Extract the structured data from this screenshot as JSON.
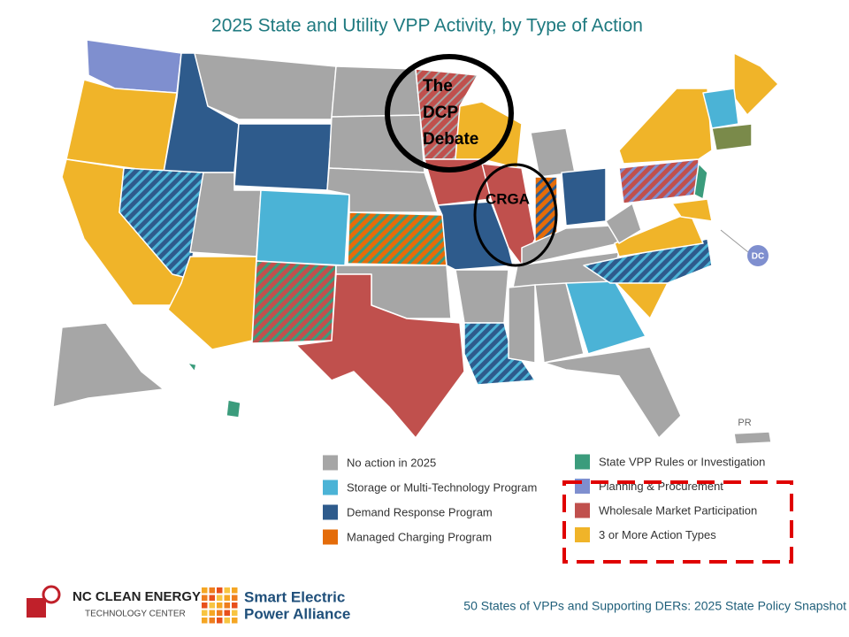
{
  "title": "2025 State and Utility VPP Activity, by Type of Action",
  "annotations": {
    "dcp": [
      "The",
      "DCP",
      "Debate"
    ],
    "crga": "CRGA"
  },
  "map_labels": {
    "dc": "DC",
    "pr": "PR"
  },
  "legend": [
    {
      "label": "No action in 2025",
      "color": "#a6a6a6"
    },
    {
      "label": "Storage or Multi-Technology Program",
      "color": "#4bb3d6"
    },
    {
      "label": "Demand Response Program",
      "color": "#2e5b8c"
    },
    {
      "label": "Managed Charging Program",
      "color": "#e46c0a"
    },
    {
      "label": "State VPP Rules or Investigation",
      "color": "#3b9c7c"
    },
    {
      "label": "Planning & Procurement",
      "color": "#7f8fcf"
    },
    {
      "label": "Wholesale Market Participation",
      "color": "#c0504d"
    },
    {
      "label": "3 or More Action Types",
      "color": "#f0b429"
    }
  ],
  "footer": {
    "nc_logo": [
      "NC CLEAN ENERGY",
      "TECHNOLOGY CENTER"
    ],
    "sepa_logo": [
      "Smart Electric",
      "Power Alliance"
    ],
    "caption": "50 States of VPPs and Supporting DERs: 2025 State Policy Snapshot"
  }
}
